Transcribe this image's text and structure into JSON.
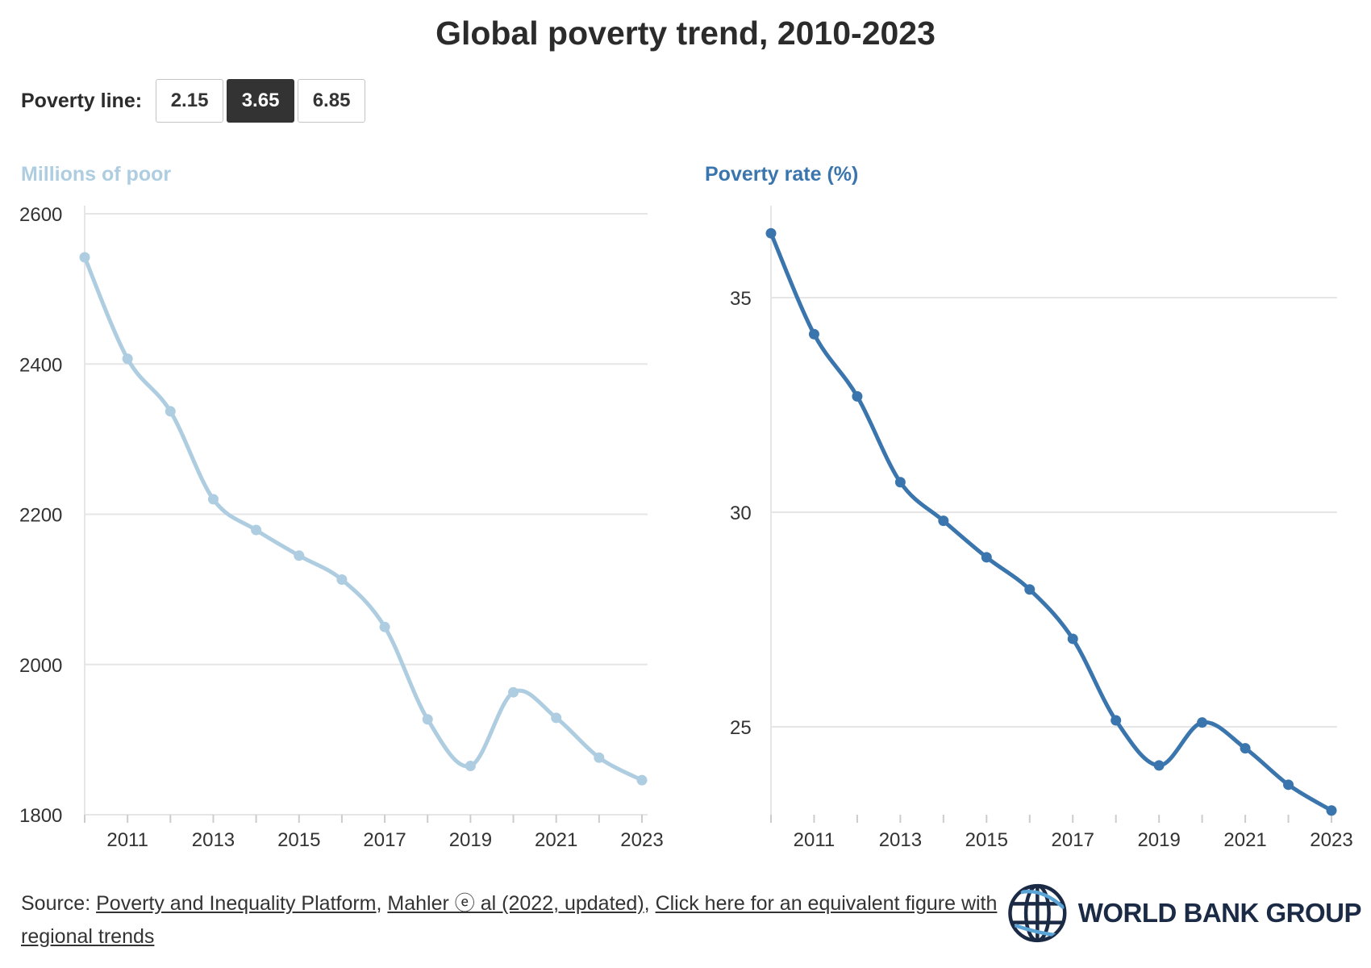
{
  "title": "Global poverty trend, 2010-2023",
  "poverty_line": {
    "label": "Poverty line:",
    "options": [
      "2.15",
      "3.65",
      "6.85"
    ],
    "selected": "3.65"
  },
  "colors": {
    "left_series": "#aecde1",
    "right_series": "#3a76ad",
    "grid": "#e6e6e6",
    "axis_text": "#333333"
  },
  "chart_data": [
    {
      "type": "line",
      "title": "Millions of poor",
      "x": [
        2010,
        2011,
        2012,
        2013,
        2014,
        2015,
        2016,
        2017,
        2018,
        2019,
        2020,
        2021,
        2022,
        2023
      ],
      "series": [
        {
          "values": [
            2542,
            2407,
            2337,
            2220,
            2179,
            2145,
            2113,
            2050,
            1927,
            1865,
            1963,
            1929,
            1876,
            1846
          ]
        }
      ],
      "ylim": [
        1800,
        2600
      ],
      "yticks": [
        1800,
        2000,
        2200,
        2400,
        2600
      ],
      "xticks": [
        2011,
        2013,
        2015,
        2017,
        2019,
        2021,
        2023
      ],
      "xlim": [
        2010,
        2023
      ],
      "grid": true
    },
    {
      "type": "line",
      "title": "Poverty rate (%)",
      "x": [
        2010,
        2011,
        2012,
        2013,
        2014,
        2015,
        2016,
        2017,
        2018,
        2019,
        2020,
        2021,
        2022,
        2023
      ],
      "series": [
        {
          "values": [
            36.5,
            34.15,
            32.7,
            30.7,
            29.8,
            28.95,
            28.2,
            27.05,
            25.15,
            24.1,
            25.1,
            24.5,
            23.65,
            23.05
          ]
        }
      ],
      "ylim": [
        23,
        37
      ],
      "yticks": [
        25,
        30,
        35
      ],
      "xticks": [
        2011,
        2013,
        2015,
        2017,
        2019,
        2021,
        2023
      ],
      "xlim": [
        2010,
        2023
      ],
      "grid": true
    }
  ],
  "source": {
    "prefix": "Source: ",
    "link1": "Poverty and Inequality Platform",
    "sep1": ", ",
    "link2": "Mahler ⓔ al (2022, updated)",
    "sep2": ", ",
    "link3": "Click here for an equivalent figure with regional trends"
  },
  "logo": {
    "text": "WORLD BANK GROUP",
    "icon": "globe-icon"
  }
}
